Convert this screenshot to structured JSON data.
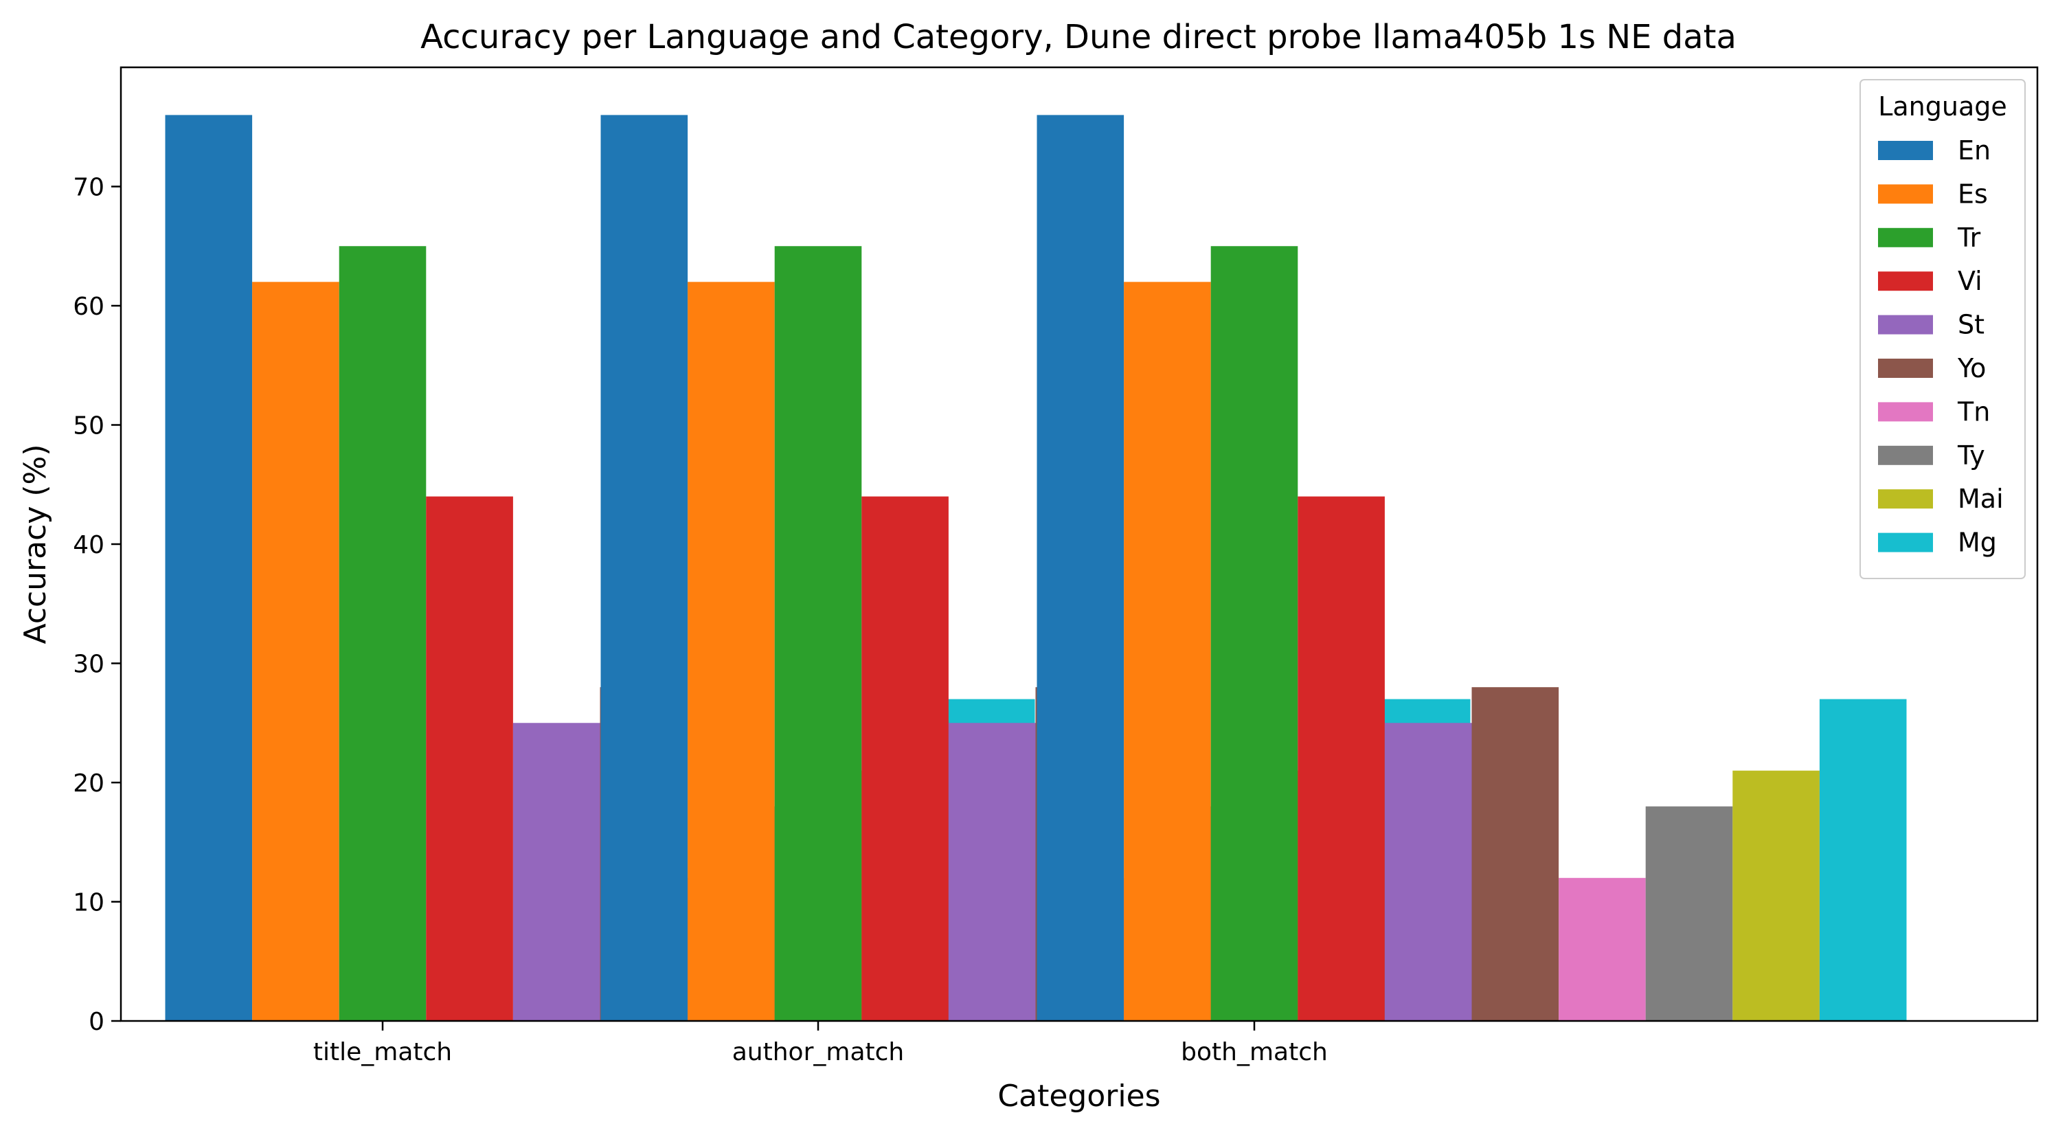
{
  "chart_data": {
    "type": "bar",
    "title": "Accuracy per Language and Category, Dune direct probe llama405b 1s NE data",
    "xlabel": "Categories",
    "ylabel": "Accuracy (%)",
    "categories": [
      "title_match",
      "author_match",
      "both_match"
    ],
    "ylim": [
      0,
      80
    ],
    "yticks": [
      0,
      10,
      20,
      30,
      40,
      50,
      60,
      70
    ],
    "grid": false,
    "legend": {
      "title": "Language",
      "placement": "top-right"
    },
    "series": [
      {
        "name": "En",
        "color": "#1f77b4",
        "values": [
          76,
          76,
          76
        ]
      },
      {
        "name": "Es",
        "color": "#ff7f0e",
        "values": [
          62,
          62,
          62
        ]
      },
      {
        "name": "Tr",
        "color": "#2ca02c",
        "values": [
          65,
          65,
          65
        ]
      },
      {
        "name": "Vi",
        "color": "#d62728",
        "values": [
          44,
          44,
          44
        ]
      },
      {
        "name": "St",
        "color": "#9467bd",
        "values": [
          25,
          25,
          25
        ]
      },
      {
        "name": "Yo",
        "color": "#8c564b",
        "values": [
          28,
          28,
          28
        ]
      },
      {
        "name": "Tn",
        "color": "#e377c2",
        "values": [
          12,
          12,
          12
        ]
      },
      {
        "name": "Ty",
        "color": "#7f7f7f",
        "values": [
          18,
          18,
          18
        ]
      },
      {
        "name": "Mai",
        "color": "#bcbd22",
        "values": [
          21,
          21,
          21
        ]
      },
      {
        "name": "Mg",
        "color": "#17becf",
        "values": [
          27,
          27,
          27
        ]
      }
    ]
  }
}
